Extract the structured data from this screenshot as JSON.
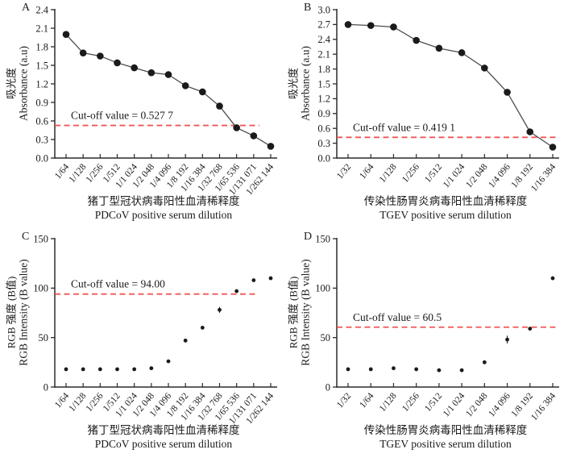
{
  "colors": {
    "marker": "#1a1a1a",
    "series_line": "#4d4d4d",
    "cutoff_line": "#ee4545",
    "axis": "#2b2b2b",
    "text": "#1a1a1a",
    "background": "#ffffff"
  },
  "chart_data": [
    {
      "panel_label": "A",
      "type": "line",
      "ylabel_cn": "吸光度",
      "ylabel_en": "Absorbance (a.u)",
      "xlabel_cn": "猪丁型冠状病毒阳性血清稀释度",
      "xlabel_en": "PDCoV positive serum dilution",
      "ylim": [
        0,
        2.4
      ],
      "y_ticks": [
        "0.0",
        "0.3",
        "0.6",
        "0.9",
        "1.2",
        "1.5",
        "1.8",
        "2.1",
        "2.4"
      ],
      "grid": false,
      "categories": [
        "1/64",
        "1/128",
        "1/256",
        "1/512",
        "1/1 024",
        "1/2 048",
        "1/4 096",
        "1/8 192",
        "1/16 384",
        "1/32 768",
        "1/65 536",
        "1/131 071",
        "1/262 144"
      ],
      "values": [
        2.0,
        1.7,
        1.65,
        1.54,
        1.46,
        1.38,
        1.35,
        1.17,
        1.07,
        0.84,
        0.49,
        0.36,
        0.19
      ],
      "errors": [
        0,
        0,
        0,
        0,
        0,
        0,
        0,
        0,
        0,
        0,
        0,
        0,
        0
      ],
      "cutoff": {
        "value": 0.5277,
        "label": "Cut-off value = 0.527 7",
        "extent": 0.92
      }
    },
    {
      "panel_label": "B",
      "type": "line",
      "ylabel_cn": "吸光度",
      "ylabel_en": "Absorbance (a.u)",
      "xlabel_cn": "传染性肠胃炎病毒阳性血清稀释度",
      "xlabel_en": "TGEV positive serum dilution",
      "ylim": [
        0,
        3.0
      ],
      "y_ticks": [
        "0.0",
        "0.3",
        "0.6",
        "0.9",
        "1.2",
        "1.5",
        "1.8",
        "2.1",
        "2.4",
        "2.7",
        "3.0"
      ],
      "grid": false,
      "categories": [
        "1/32",
        "1/64",
        "1/128",
        "1/256",
        "1/512",
        "1/1 024",
        "1/2 048",
        "1/4 096",
        "1/8 192",
        "1/16 384"
      ],
      "values": [
        2.7,
        2.68,
        2.65,
        2.38,
        2.22,
        2.13,
        1.82,
        1.33,
        0.53,
        0.22
      ],
      "errors": [
        0,
        0,
        0,
        0,
        0,
        0,
        0,
        0,
        0,
        0
      ],
      "cutoff": {
        "value": 0.4191,
        "label": "Cut-off value = 0.419 1",
        "extent": 1.0
      }
    },
    {
      "panel_label": "C",
      "type": "scatter",
      "ylabel_cn": "RGB 强度 (B值)",
      "ylabel_en": "RGB Intensity (B value)",
      "xlabel_cn": "猪丁型冠状病毒阳性血清稀释度",
      "xlabel_en": "PDCoV positive serum dilution",
      "ylim": [
        0,
        150
      ],
      "y_ticks": [
        "0",
        "50",
        "100",
        "150"
      ],
      "grid": false,
      "categories": [
        "1/64",
        "1/128",
        "1/256",
        "1/512",
        "1/1 024",
        "1/2 048",
        "1/4 096",
        "1/8 192",
        "1/16 384",
        "1/32 768",
        "1/65 536",
        "1/131 071",
        "1/262 144"
      ],
      "values": [
        18,
        18,
        18,
        18,
        18,
        19,
        26,
        47,
        60,
        78,
        97,
        108,
        110
      ],
      "errors": [
        0,
        0,
        0,
        0,
        0,
        0,
        0,
        2,
        0,
        3,
        0,
        0,
        0
      ],
      "cutoff": {
        "value": 94.0,
        "label": "Cut-off value = 94.00",
        "extent": 0.91
      }
    },
    {
      "panel_label": "D",
      "type": "scatter",
      "ylabel_cn": "RGB 强度 (B值)",
      "ylabel_en": "RGB Intensity (B value)",
      "xlabel_cn": "传染性肠胃炎病毒阳性血清稀释度",
      "xlabel_en": "TGEV positive serum dilution",
      "ylim": [
        0,
        150
      ],
      "y_ticks": [
        "0",
        "50",
        "100",
        "150"
      ],
      "grid": false,
      "categories": [
        "1/32",
        "1/64",
        "1/128",
        "1/256",
        "1/512",
        "1/1 024",
        "1/2 048",
        "1/4 096",
        "1/8 192",
        "1/16 384"
      ],
      "values": [
        18,
        18,
        19,
        18,
        17,
        17,
        25,
        48,
        59,
        110
      ],
      "errors": [
        0,
        0,
        0,
        0,
        0,
        0,
        0,
        4,
        0,
        0
      ],
      "cutoff": {
        "value": 60.5,
        "label": "Cut-off value = 60.5",
        "extent": 1.0
      }
    }
  ]
}
